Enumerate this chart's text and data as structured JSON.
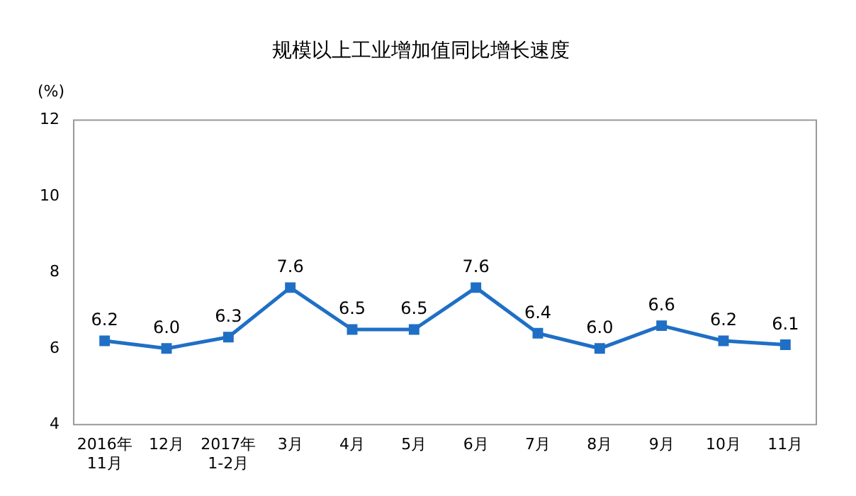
{
  "chart_data": {
    "type": "line",
    "title": "规模以上工业增加值同比增长速度",
    "ylabel": "(%)",
    "categories": [
      "2016年\n11月",
      "12月",
      "2017年\n1-2月",
      "3月",
      "4月",
      "5月",
      "6月",
      "7月",
      "8月",
      "9月",
      "10月",
      "11月"
    ],
    "series": [
      {
        "color": "#1f6fc5",
        "values": [
          6.2,
          6.0,
          6.3,
          7.6,
          6.5,
          6.5,
          7.6,
          6.4,
          6.0,
          6.6,
          6.2,
          6.1
        ],
        "value_labels": [
          "6.2",
          "6.0",
          "6.3",
          "7.6",
          "6.5",
          "6.5",
          "7.6",
          "6.4",
          "6.0",
          "6.6",
          "6.2",
          "6.1"
        ]
      }
    ],
    "ylim": [
      4,
      12
    ],
    "yticks": [
      4,
      6,
      8,
      10,
      12
    ],
    "grid": false,
    "legend": false,
    "marker": "square",
    "line_style": "solid"
  }
}
